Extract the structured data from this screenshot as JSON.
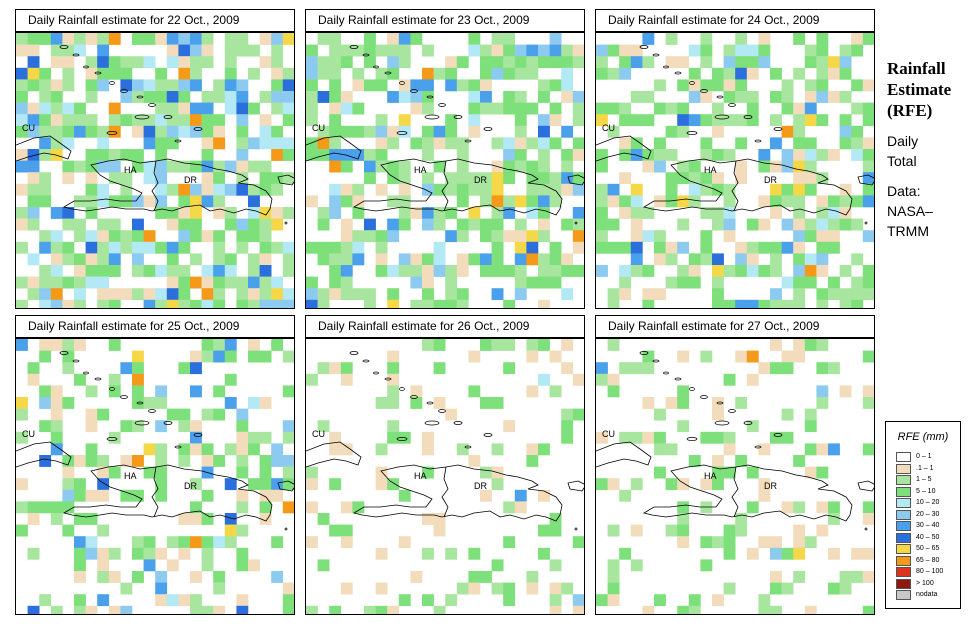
{
  "panels": [
    {
      "title": "Daily Rainfall estimate for  22 Oct., 2009",
      "wet": 0.62,
      "heavy": 0.35
    },
    {
      "title": "Daily Rainfall estimate for  23 Oct., 2009",
      "wet": 0.55,
      "heavy": 0.3
    },
    {
      "title": "Daily Rainfall estimate for  24 Oct., 2009",
      "wet": 0.45,
      "heavy": 0.22
    },
    {
      "title": "Daily Rainfall estimate for  25 Oct., 2009",
      "wet": 0.3,
      "heavy": 0.25
    },
    {
      "title": "Daily Rainfall estimate for  26 Oct., 2009",
      "wet": 0.12,
      "heavy": 0.02
    },
    {
      "title": "Daily Rainfall estimate for  27 Oct., 2009",
      "wet": 0.15,
      "heavy": 0.03
    }
  ],
  "map_labels": {
    "cu": "CU",
    "ha": "HA",
    "dr": "DR"
  },
  "side": {
    "line1": "Rainfall",
    "line2": "Estimate",
    "line3": "(RFE)",
    "sub1": "Daily",
    "sub2": "Total",
    "data1": "Data:",
    "data2": "NASA–",
    "data3": "TRMM"
  },
  "legend": {
    "title": "RFE (mm)",
    "items": [
      {
        "label": "0 – 1",
        "color": "#ffffff"
      },
      {
        "label": ".1 – 1",
        "color": "#f2dcbb"
      },
      {
        "label": "1 – 5",
        "color": "#a8e6a0"
      },
      {
        "label": "5 – 10",
        "color": "#7ee07a"
      },
      {
        "label": "10 – 20",
        "color": "#b3e8f5"
      },
      {
        "label": "20 – 30",
        "color": "#8ccaf0"
      },
      {
        "label": "30 – 40",
        "color": "#4aa0ea"
      },
      {
        "label": "40 – 50",
        "color": "#2a6fdc"
      },
      {
        "label": "50 – 65",
        "color": "#f5d848"
      },
      {
        "label": "65 – 80",
        "color": "#f59a18"
      },
      {
        "label": "80 – 100",
        "color": "#e0321c"
      },
      {
        "label": "> 100",
        "color": "#8c1a10"
      },
      {
        "label": "nodata",
        "color": "#c8c8c8"
      }
    ]
  }
}
